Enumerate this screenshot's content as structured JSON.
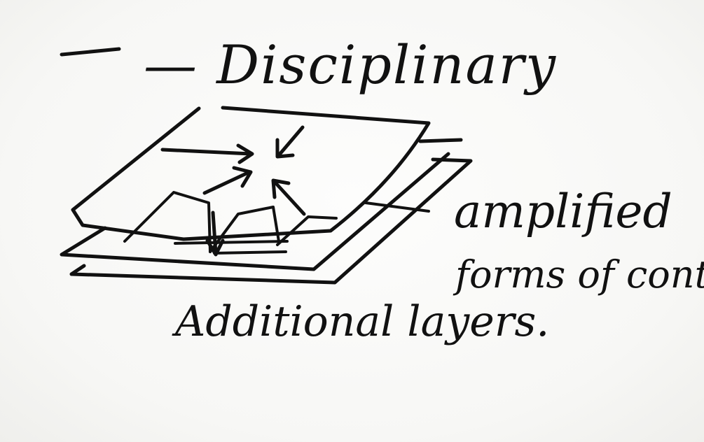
{
  "diagram": {
    "title": "— Disciplinary",
    "side_note_line1": "amplified",
    "side_note_line2": "forms of control.",
    "bottom_label": "Additional layers.",
    "ink_color": "#111111",
    "paper_color": "#f8f8f6"
  }
}
